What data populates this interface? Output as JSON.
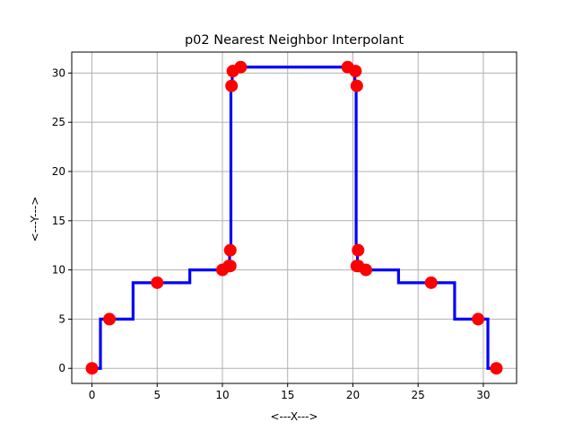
{
  "chart_data": {
    "type": "line",
    "title": "p02 Nearest Neighbor Interpolant",
    "xlabel": "<---X--->",
    "ylabel": "<---Y--->",
    "xlim": [
      -1.55,
      32.55
    ],
    "ylim": [
      -1.53,
      32.13
    ],
    "xticks": [
      0,
      5,
      10,
      15,
      20,
      25,
      30
    ],
    "yticks": [
      0,
      5,
      10,
      15,
      20,
      25,
      30
    ],
    "grid": true,
    "legend": "none",
    "series": [
      {
        "role": "interpolant",
        "color": "#0000ff",
        "x": [
          0,
          0.65,
          0.65,
          3.15,
          3.15,
          7.5,
          7.5,
          10.3,
          10.3,
          10.55,
          10.55,
          10.65,
          10.65,
          10.75,
          10.75,
          10.85,
          10.85,
          11.0,
          11.0,
          19.9,
          19.9,
          20.15,
          20.15,
          20.25,
          20.25,
          20.35,
          20.35,
          20.45,
          20.45,
          20.7,
          20.7,
          23.5,
          23.5,
          27.8,
          27.8,
          30.35,
          30.35,
          31
        ],
        "y": [
          0,
          0,
          5,
          5,
          8.7,
          8.7,
          10,
          10,
          10.4,
          10.4,
          12,
          12,
          28.7,
          28.7,
          30.2,
          30.2,
          30.6,
          30.6,
          30.6,
          30.6,
          30.2,
          30.2,
          28.7,
          28.7,
          12,
          12,
          10.4,
          10.4,
          10,
          10,
          10,
          10,
          8.7,
          8.7,
          5,
          5,
          0,
          0
        ]
      },
      {
        "role": "data-points",
        "color": "#ff0000",
        "x": [
          0,
          1.34,
          5,
          10,
          10.6,
          10.5,
          10.6,
          10.7,
          10.8,
          11.4,
          19.6,
          20.2,
          20.3,
          20.4,
          20.3,
          20.4,
          21,
          26,
          29.6,
          31
        ],
        "y": [
          0,
          5,
          8.7,
          10,
          10.4,
          10.4,
          12,
          28.7,
          30.2,
          30.6,
          30.6,
          30.2,
          28.7,
          12,
          10.4,
          10.4,
          10,
          8.7,
          5,
          0
        ]
      }
    ]
  }
}
